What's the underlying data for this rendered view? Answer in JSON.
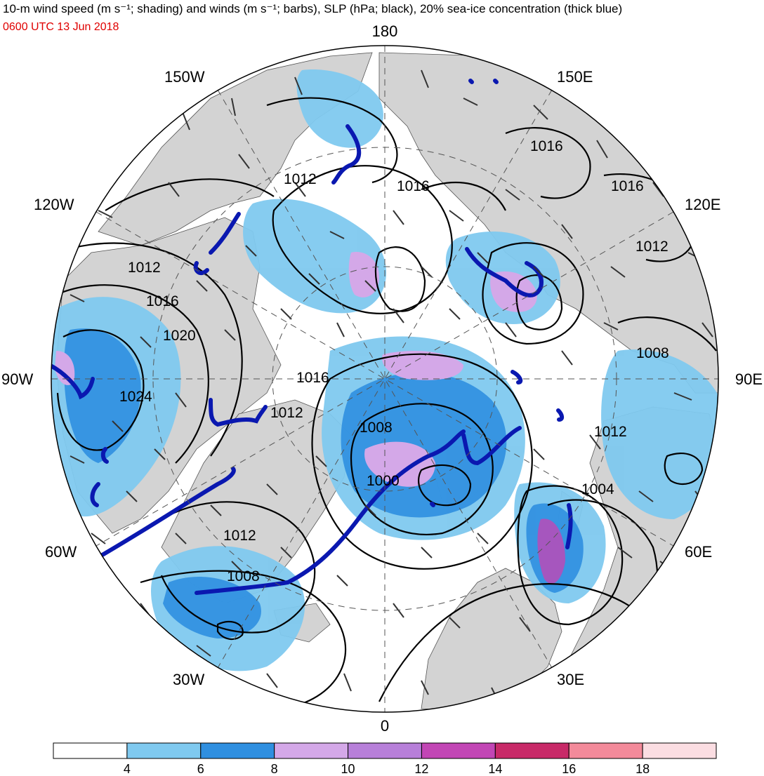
{
  "title": "10-m wind speed (m s⁻¹; shading) and winds (m s⁻¹; barbs), SLP (hPa; black), 20% sea-ice concentration (thick blue)",
  "valid_time": "0600 UTC 13 Jun 2018",
  "longitude_labels": {
    "top": "180",
    "bottom": "0",
    "left": "90W",
    "right": "90E",
    "upper_left_1": "150W",
    "upper_left_2": "120W",
    "upper_right_1": "150E",
    "upper_right_2": "120E",
    "lower_left_1": "60W",
    "lower_left_2": "30W",
    "lower_right_1": "60E",
    "lower_right_2": "30E"
  },
  "isobar_labels": [
    "1016",
    "1012",
    "1016",
    "1016",
    "1012",
    "1012",
    "1016",
    "1020",
    "1016",
    "1008",
    "1024",
    "1012",
    "1008",
    "1012",
    "1000",
    "1004",
    "1012",
    "1008"
  ],
  "colorbar": {
    "ticks": [
      "4",
      "6",
      "8",
      "10",
      "12",
      "14",
      "16",
      "18"
    ],
    "colors": [
      "#ffffff",
      "#7fc9ef",
      "#2f8fe0",
      "#d4a8e8",
      "#b77fd9",
      "#c246b5",
      "#c82a68",
      "#f38a9a",
      "#fbdde2"
    ]
  },
  "legend_colors": {
    "land": "#d3d3d3",
    "sea_ice_edge": "#0a18b0",
    "isobar": "#000000"
  }
}
